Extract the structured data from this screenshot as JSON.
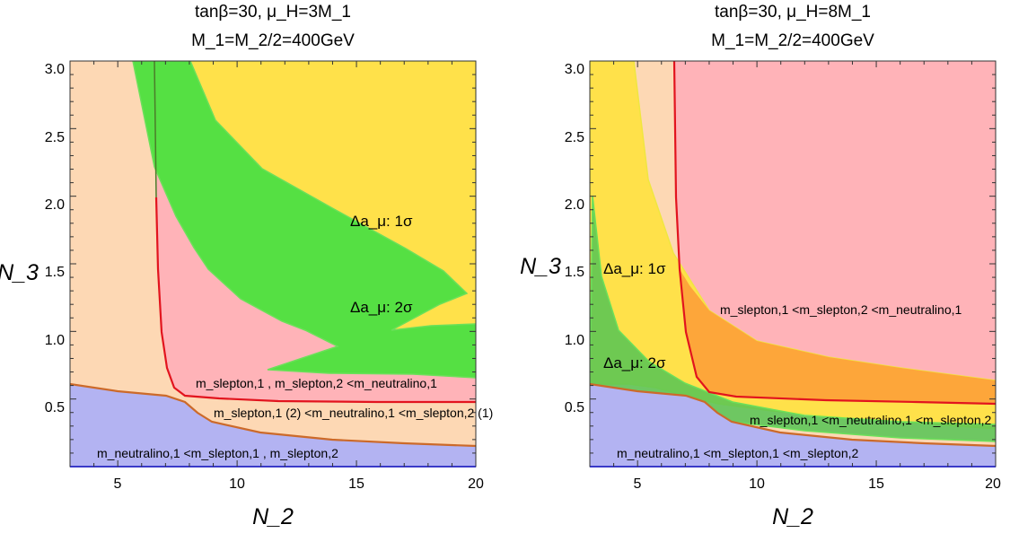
{
  "charts": [
    {
      "title_line1": "tanβ=30, μ_H=3M_1",
      "title_line2": "M_1=M_2/2=400GeV",
      "xlabel": "N_2",
      "ylabel": "N_3",
      "xticks": [
        "5",
        "10",
        "15",
        "20"
      ],
      "yticks": [
        "0.5",
        "1.0",
        "1.5",
        "2.0",
        "2.5",
        "3.0"
      ],
      "annotations": {
        "da_1sigma": "Δa_μ: 1σ",
        "da_2sigma": "Δa_μ: 2σ",
        "region_top": "m_slepton,1 , m_slepton,2 <m_neutralino,1",
        "region_mid": "m_slepton,1 (2) <m_neutralino,1 <m_slepton,2 (1)",
        "region_bot": "m_neutralino,1 <m_slepton,1 , m_slepton,2"
      }
    },
    {
      "title_line1": "tanβ=30, μ_H=8M_1",
      "title_line2": "M_1=M_2/2=400GeV",
      "xlabel": "N_2",
      "ylabel": "N_3",
      "xticks": [
        "5",
        "10",
        "15",
        "20"
      ],
      "yticks": [
        "0.5",
        "1.0",
        "1.5",
        "2.0",
        "2.5",
        "3.0"
      ],
      "annotations": {
        "da_1sigma": "Δa_μ: 1σ",
        "da_2sigma": "Δa_μ: 2σ",
        "region_top": "m_slepton,1 <m_slepton,2 <m_neutralino,1",
        "region_mid": "m_slepton,1 <m_neutralino,1 <m_slepton,2",
        "region_bot": "m_neutralino,1 <m_slepton,1 <m_slepton,2"
      }
    }
  ],
  "chart_data": [
    {
      "type": "area",
      "title": "tanβ=30, μ_H=3M_1 / M_1=M_2/2=400GeV",
      "xlabel": "N_2",
      "ylabel": "N_3",
      "xlim": [
        3,
        20
      ],
      "ylim": [
        0,
        3
      ],
      "colors": {
        "neutralino_lightest": "#b3b3f2",
        "slepton_between": "#fdd8b4",
        "sleptons_lightest": "#ffb3b8",
        "da_2sigma": "#55e043",
        "da_1sigma": "#ffe14a",
        "red_boundary": "#e2141e",
        "orange_boundary": "#cc6a2a"
      },
      "boundaries": [
        {
          "name": "neutralino_lightest_upper",
          "x": [
            3,
            5,
            7,
            8,
            8.5,
            9,
            11,
            14,
            17,
            20
          ],
          "y": [
            0.63,
            0.58,
            0.55,
            0.52,
            0.46,
            0.38,
            0.3,
            0.24,
            0.2,
            0.18
          ]
        },
        {
          "name": "red_boundary",
          "x": [
            6.7,
            6.75,
            6.9,
            7.2,
            7.6,
            8.0,
            8.5,
            9.5,
            12,
            16,
            20
          ],
          "y": [
            3.0,
            2.2,
            1.7,
            1.25,
            0.9,
            0.68,
            0.58,
            0.55,
            0.53,
            0.52,
            0.51
          ]
        },
        {
          "name": "da_2sigma_left_edge",
          "x": [
            5.65,
            6.0,
            6.4,
            7.0,
            7.6,
            8.3
          ],
          "y": [
            3.0,
            2.6,
            2.3,
            1.9,
            1.55,
            1.25
          ]
        },
        {
          "name": "da_2sigma_lower_edge",
          "x": [
            8.3,
            9.5,
            10.8,
            12.5,
            14.0,
            13.2,
            11.8,
            11.1,
            13.5,
            15.5,
            17.3,
            20
          ],
          "y": [
            1.25,
            1.08,
            0.98,
            0.92,
            0.88,
            0.82,
            0.77,
            0.74,
            0.71,
            0.7,
            0.69,
            0.68
          ]
        },
        {
          "name": "da_1sigma_lower_edge",
          "x": [
            7.9,
            9.0,
            11.0,
            14.0,
            17.0,
            18.6,
            19.6,
            18.5,
            16.5,
            17.8,
            20
          ],
          "y": [
            3.0,
            2.55,
            2.2,
            1.9,
            1.62,
            1.45,
            1.28,
            1.2,
            1.01,
            1.04,
            1.05
          ]
        }
      ]
    },
    {
      "type": "area",
      "title": "tanβ=30, μ_H=8M_1 / M_1=M_2/2=400GeV",
      "xlabel": "N_2",
      "ylabel": "N_3",
      "xlim": [
        3,
        20
      ],
      "ylim": [
        0,
        3
      ],
      "colors": {
        "neutralino_lightest": "#b3b3f2",
        "slepton_between": "#fdd8b4",
        "sleptons_lightest": "#ffb3b8",
        "da_1sigma": "#ffe14a",
        "da_overlap_orange": "#fda63a",
        "da_2sigma": "#55c454",
        "red_boundary": "#e2141e",
        "orange_boundary": "#cc6a2a"
      },
      "boundaries": [
        {
          "name": "red_boundary",
          "x": [
            6.6,
            6.65,
            6.8,
            7.1,
            7.5,
            8.0,
            9.0,
            11,
            15,
            20
          ],
          "y": [
            3.0,
            2.2,
            1.7,
            1.2,
            0.85,
            0.65,
            0.58,
            0.55,
            0.53,
            0.52
          ]
        },
        {
          "name": "neutralino_lightest_upper",
          "x": [
            3,
            5,
            7,
            8,
            8.5,
            9,
            11,
            14,
            17,
            20
          ],
          "y": [
            0.63,
            0.58,
            0.55,
            0.52,
            0.46,
            0.38,
            0.3,
            0.24,
            0.2,
            0.18
          ]
        },
        {
          "name": "da_1sigma_upper_edge",
          "x": [
            4.8,
            5.5,
            6.5,
            8.0,
            10,
            13,
            16,
            20
          ],
          "y": [
            3.0,
            2.1,
            1.55,
            1.15,
            0.92,
            0.8,
            0.72,
            0.62
          ]
        },
        {
          "name": "da_2sigma_upper_edge",
          "x": [
            3.1,
            3.5,
            4.3,
            5.5,
            7.0,
            9.0,
            12,
            16,
            20
          ],
          "y": [
            2.0,
            1.4,
            1.0,
            0.78,
            0.62,
            0.48,
            0.38,
            0.33,
            0.31
          ]
        }
      ]
    }
  ]
}
